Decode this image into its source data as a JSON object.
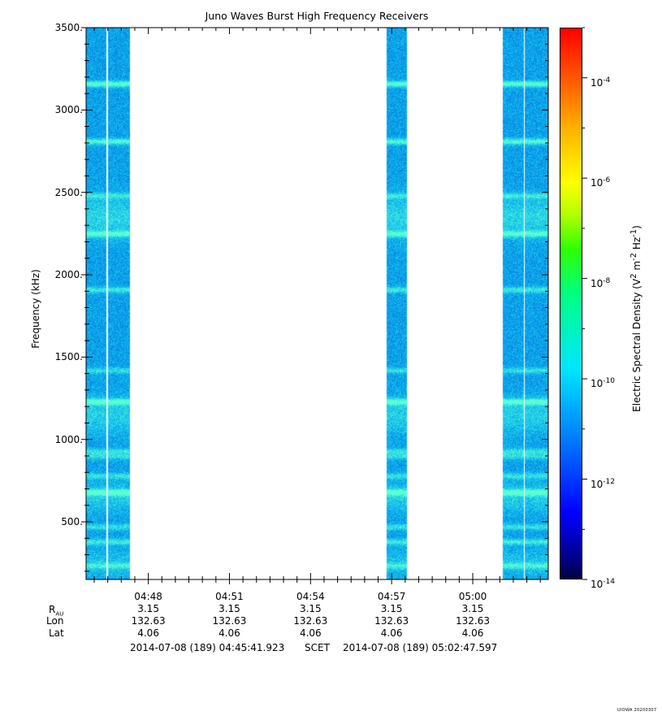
{
  "chart_data": {
    "type": "heatmap",
    "title": "Juno Waves Burst High Frequency Receivers",
    "ylabel": "Frequency (kHz)",
    "ylim": [
      150,
      3500
    ],
    "yticks": [
      500,
      1000,
      1500,
      2000,
      2500,
      3000,
      3500
    ],
    "ytick_labels": [
      "500.",
      "1000.",
      "1500.",
      "2000.",
      "2500.",
      "3000.",
      "3500."
    ],
    "x_start": "04:45:41.923",
    "x_end": "05:02:47.597",
    "xticks": [
      "04:48",
      "04:51",
      "04:54",
      "04:57",
      "05:00"
    ],
    "data_intervals": [
      {
        "start": "04:45:42",
        "end": "04:46:26"
      },
      {
        "start": "04:46:30",
        "end": "04:47:18"
      },
      {
        "start": "04:56:48",
        "end": "04:57:33"
      },
      {
        "start": "05:01:07",
        "end": "05:01:52"
      },
      {
        "start": "05:01:56",
        "end": "05:02:47"
      }
    ],
    "enhanced_bands_khz": [
      {
        "freq": 3160,
        "strength": 0.9
      },
      {
        "freq": 2810,
        "strength": 0.8
      },
      {
        "freq": 2480,
        "strength": 0.5
      },
      {
        "freq": 2250,
        "strength": 0.75
      },
      {
        "freq": 1910,
        "strength": 0.6
      },
      {
        "freq": 1420,
        "strength": 0.5
      },
      {
        "freq": 1230,
        "strength": 0.85
      },
      {
        "freq": 930,
        "strength": 0.5
      },
      {
        "freq": 900,
        "strength": 0.5
      },
      {
        "freq": 780,
        "strength": 0.5
      },
      {
        "freq": 680,
        "strength": 0.9
      },
      {
        "freq": 470,
        "strength": 0.5
      },
      {
        "freq": 380,
        "strength": 0.6
      },
      {
        "freq": 235,
        "strength": 0.5
      }
    ],
    "colorbar": {
      "label": "Electric Spectral Density (V² m⁻² Hz⁻¹)",
      "scale": "log",
      "range": [
        1e-14,
        0.001
      ],
      "tick_labels": [
        "10-14",
        "10-12",
        "10-10",
        "10-8",
        "10-6",
        "10-4"
      ],
      "colormap": "rainbow"
    },
    "ephemeris": {
      "row_labels": [
        "R",
        "Lon",
        "Lat"
      ],
      "r_subscript": "AU",
      "r_au": [
        "3.15",
        "3.15",
        "3.15",
        "3.15",
        "3.15"
      ],
      "lon": [
        "132.63",
        "132.63",
        "132.63",
        "132.63",
        "132.63"
      ],
      "lat": [
        "4.06",
        "4.06",
        "4.06",
        "4.06",
        "4.06"
      ]
    },
    "time_range": {
      "start": "2014-07-08 (189) 04:45:41.923",
      "label": "SCET",
      "end": "2014-07-08 (189) 05:02:47.597"
    }
  },
  "footer": "UIOWA 20200307",
  "colors": {
    "background": "#ffffff",
    "axis": "#000000",
    "noise_low": "#0a3dde",
    "noise_high": "#00e8f0"
  }
}
